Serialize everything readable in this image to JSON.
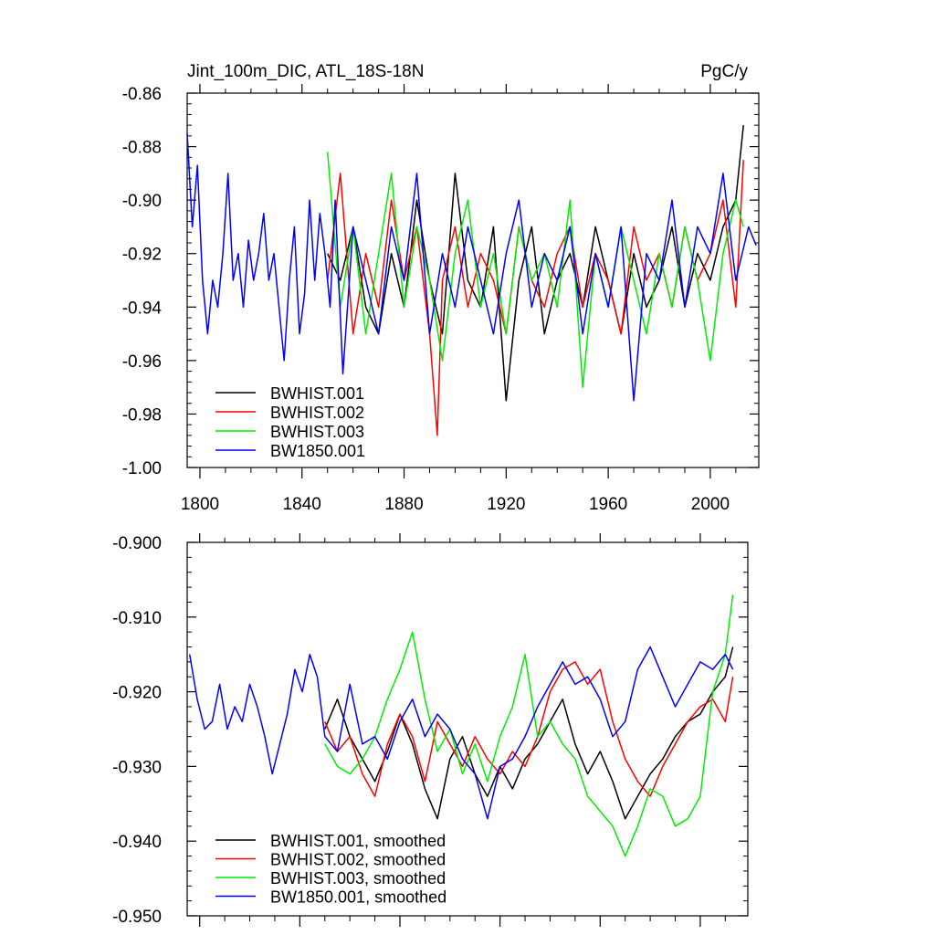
{
  "chart_data": [
    {
      "type": "line",
      "title": "Jint_100m_DIC, ATL_18S-18N",
      "units": "PgC/y",
      "xlim": [
        1795,
        2019
      ],
      "ylim": [
        -1.0,
        -0.86
      ],
      "x_ticks": [
        1800,
        1840,
        1880,
        1920,
        1960,
        2000
      ],
      "x_tick_labels": [
        "1800",
        "1840",
        "1880",
        "1920",
        "1960",
        "2000"
      ],
      "y_ticks": [
        -0.86,
        -0.88,
        -0.9,
        -0.92,
        -0.94,
        -0.96,
        -0.98,
        -1.0
      ],
      "y_tick_labels": [
        "-0.86",
        "-0.88",
        "-0.90",
        "-0.92",
        "-0.94",
        "-0.96",
        "-0.98",
        "-1.00"
      ],
      "legend_position": "bottom-left",
      "series": [
        {
          "name": "BWHIST.001",
          "color": "#000000",
          "x": [
            1850,
            1855,
            1860,
            1865,
            1870,
            1875,
            1880,
            1885,
            1890,
            1895,
            1900,
            1905,
            1910,
            1915,
            1920,
            1925,
            1930,
            1935,
            1940,
            1945,
            1950,
            1955,
            1960,
            1965,
            1970,
            1975,
            1980,
            1985,
            1990,
            1995,
            2000,
            2005,
            2010,
            2013
          ],
          "y": [
            -0.92,
            -0.93,
            -0.91,
            -0.94,
            -0.95,
            -0.92,
            -0.94,
            -0.9,
            -0.93,
            -0.95,
            -0.89,
            -0.93,
            -0.94,
            -0.91,
            -0.975,
            -0.93,
            -0.91,
            -0.95,
            -0.93,
            -0.92,
            -0.94,
            -0.91,
            -0.93,
            -0.95,
            -0.92,
            -0.94,
            -0.93,
            -0.91,
            -0.94,
            -0.92,
            -0.93,
            -0.91,
            -0.9,
            -0.872
          ]
        },
        {
          "name": "BWHIST.002",
          "color": "#ff0000",
          "x": [
            1850,
            1855,
            1860,
            1865,
            1870,
            1875,
            1880,
            1885,
            1890,
            1893,
            1895,
            1900,
            1905,
            1910,
            1915,
            1920,
            1925,
            1930,
            1935,
            1940,
            1945,
            1950,
            1955,
            1960,
            1965,
            1970,
            1975,
            1980,
            1985,
            1990,
            1995,
            2000,
            2005,
            2010,
            2013
          ],
          "y": [
            -0.93,
            -0.89,
            -0.95,
            -0.92,
            -0.94,
            -0.9,
            -0.93,
            -0.91,
            -0.95,
            -0.988,
            -0.93,
            -0.91,
            -0.94,
            -0.92,
            -0.93,
            -0.95,
            -0.91,
            -0.93,
            -0.94,
            -0.92,
            -0.91,
            -0.94,
            -0.92,
            -0.93,
            -0.95,
            -0.91,
            -0.93,
            -0.92,
            -0.94,
            -0.91,
            -0.93,
            -0.92,
            -0.9,
            -0.94,
            -0.885
          ]
        },
        {
          "name": "BWHIST.003",
          "color": "#00ee00",
          "x": [
            1850,
            1855,
            1860,
            1865,
            1870,
            1875,
            1880,
            1885,
            1890,
            1895,
            1900,
            1905,
            1910,
            1915,
            1920,
            1925,
            1930,
            1935,
            1940,
            1945,
            1950,
            1955,
            1960,
            1965,
            1970,
            1975,
            1980,
            1985,
            1990,
            1995,
            2000,
            2005,
            2010,
            2013
          ],
          "y": [
            -0.882,
            -0.94,
            -0.91,
            -0.95,
            -0.92,
            -0.89,
            -0.94,
            -0.91,
            -0.93,
            -0.96,
            -0.92,
            -0.9,
            -0.94,
            -0.92,
            -0.95,
            -0.91,
            -0.93,
            -0.92,
            -0.94,
            -0.9,
            -0.97,
            -0.92,
            -0.94,
            -0.91,
            -0.93,
            -0.95,
            -0.92,
            -0.94,
            -0.91,
            -0.93,
            -0.96,
            -0.92,
            -0.9,
            -0.91
          ]
        },
        {
          "name": "BW1850.001",
          "color": "#0000ff",
          "x": [
            1795,
            1797,
            1799,
            1801,
            1803,
            1805,
            1807,
            1809,
            1811,
            1813,
            1815,
            1817,
            1819,
            1821,
            1823,
            1825,
            1827,
            1829,
            1831,
            1833,
            1835,
            1837,
            1839,
            1841,
            1843,
            1845,
            1847,
            1849,
            1851,
            1853,
            1856,
            1860,
            1865,
            1870,
            1875,
            1880,
            1885,
            1890,
            1895,
            1900,
            1905,
            1910,
            1915,
            1920,
            1925,
            1930,
            1935,
            1940,
            1945,
            1950,
            1955,
            1960,
            1965,
            1970,
            1975,
            1980,
            1985,
            1990,
            1995,
            2000,
            2005,
            2010,
            2015,
            2018
          ],
          "y": [
            -0.875,
            -0.91,
            -0.887,
            -0.93,
            -0.95,
            -0.93,
            -0.94,
            -0.92,
            -0.89,
            -0.93,
            -0.92,
            -0.94,
            -0.915,
            -0.93,
            -0.92,
            -0.905,
            -0.93,
            -0.92,
            -0.94,
            -0.96,
            -0.93,
            -0.91,
            -0.95,
            -0.935,
            -0.9,
            -0.93,
            -0.905,
            -0.92,
            -0.94,
            -0.9,
            -0.965,
            -0.91,
            -0.93,
            -0.95,
            -0.91,
            -0.93,
            -0.89,
            -0.95,
            -0.92,
            -0.94,
            -0.91,
            -0.93,
            -0.95,
            -0.92,
            -0.9,
            -0.94,
            -0.92,
            -0.93,
            -0.91,
            -0.95,
            -0.92,
            -0.94,
            -0.91,
            -0.975,
            -0.92,
            -0.93,
            -0.9,
            -0.94,
            -0.91,
            -0.92,
            -0.89,
            -0.93,
            -0.91,
            -0.917
          ]
        }
      ]
    },
    {
      "type": "line",
      "title": "",
      "xlim": [
        1795,
        2019
      ],
      "ylim": [
        -0.95,
        -0.9
      ],
      "x_ticks": [
        1800,
        1840,
        1880,
        1920,
        1960,
        2000
      ],
      "y_ticks": [
        -0.9,
        -0.91,
        -0.92,
        -0.93,
        -0.94,
        -0.95
      ],
      "y_tick_labels": [
        "-0.900",
        "-0.910",
        "-0.920",
        "-0.930",
        "-0.940",
        "-0.950"
      ],
      "legend_position": "bottom-left",
      "series": [
        {
          "name": "BWHIST.001, smoothed",
          "color": "#000000",
          "x": [
            1850,
            1855,
            1860,
            1865,
            1870,
            1875,
            1880,
            1885,
            1890,
            1895,
            1900,
            1905,
            1910,
            1915,
            1920,
            1925,
            1930,
            1935,
            1940,
            1945,
            1950,
            1955,
            1960,
            1965,
            1970,
            1975,
            1980,
            1985,
            1990,
            1995,
            2000,
            2005,
            2010,
            2013
          ],
          "y": [
            -0.925,
            -0.921,
            -0.926,
            -0.929,
            -0.932,
            -0.928,
            -0.923,
            -0.927,
            -0.933,
            -0.937,
            -0.929,
            -0.926,
            -0.931,
            -0.934,
            -0.93,
            -0.933,
            -0.929,
            -0.927,
            -0.924,
            -0.921,
            -0.927,
            -0.931,
            -0.928,
            -0.932,
            -0.937,
            -0.934,
            -0.931,
            -0.929,
            -0.926,
            -0.924,
            -0.923,
            -0.92,
            -0.918,
            -0.914
          ]
        },
        {
          "name": "BWHIST.002, smoothed",
          "color": "#ff0000",
          "x": [
            1850,
            1855,
            1860,
            1865,
            1870,
            1875,
            1880,
            1885,
            1890,
            1895,
            1900,
            1905,
            1910,
            1915,
            1920,
            1925,
            1930,
            1935,
            1940,
            1945,
            1950,
            1955,
            1960,
            1965,
            1970,
            1975,
            1980,
            1985,
            1990,
            1995,
            2000,
            2005,
            2010,
            2013
          ],
          "y": [
            -0.924,
            -0.928,
            -0.926,
            -0.931,
            -0.934,
            -0.927,
            -0.923,
            -0.926,
            -0.932,
            -0.924,
            -0.927,
            -0.93,
            -0.926,
            -0.929,
            -0.931,
            -0.928,
            -0.93,
            -0.926,
            -0.92,
            -0.917,
            -0.916,
            -0.919,
            -0.917,
            -0.924,
            -0.929,
            -0.932,
            -0.934,
            -0.93,
            -0.927,
            -0.924,
            -0.922,
            -0.921,
            -0.924,
            -0.918
          ]
        },
        {
          "name": "BWHIST.003, smoothed",
          "color": "#00ee00",
          "x": [
            1850,
            1855,
            1860,
            1865,
            1870,
            1875,
            1880,
            1885,
            1890,
            1895,
            1900,
            1905,
            1910,
            1915,
            1920,
            1925,
            1930,
            1935,
            1940,
            1945,
            1950,
            1955,
            1960,
            1965,
            1970,
            1975,
            1980,
            1985,
            1990,
            1995,
            2000,
            2005,
            2010,
            2013
          ],
          "y": [
            -0.927,
            -0.93,
            -0.931,
            -0.929,
            -0.926,
            -0.921,
            -0.917,
            -0.912,
            -0.921,
            -0.928,
            -0.925,
            -0.931,
            -0.927,
            -0.932,
            -0.926,
            -0.922,
            -0.915,
            -0.926,
            -0.924,
            -0.927,
            -0.929,
            -0.934,
            -0.936,
            -0.938,
            -0.942,
            -0.938,
            -0.933,
            -0.934,
            -0.938,
            -0.937,
            -0.934,
            -0.92,
            -0.915,
            -0.907
          ]
        },
        {
          "name": "BW1850.001, smoothed",
          "color": "#0000ff",
          "x": [
            1796,
            1799,
            1802,
            1805,
            1808,
            1811,
            1814,
            1817,
            1820,
            1823,
            1826,
            1829,
            1832,
            1835,
            1838,
            1841,
            1844,
            1847,
            1850,
            1855,
            1860,
            1865,
            1870,
            1875,
            1880,
            1885,
            1890,
            1895,
            1900,
            1905,
            1910,
            1915,
            1920,
            1925,
            1930,
            1935,
            1940,
            1945,
            1950,
            1955,
            1960,
            1965,
            1970,
            1975,
            1980,
            1985,
            1990,
            1995,
            2000,
            2005,
            2010,
            2013
          ],
          "y": [
            -0.915,
            -0.921,
            -0.925,
            -0.924,
            -0.919,
            -0.925,
            -0.922,
            -0.924,
            -0.919,
            -0.922,
            -0.926,
            -0.931,
            -0.927,
            -0.923,
            -0.917,
            -0.92,
            -0.915,
            -0.918,
            -0.926,
            -0.928,
            -0.919,
            -0.927,
            -0.926,
            -0.929,
            -0.924,
            -0.921,
            -0.926,
            -0.923,
            -0.925,
            -0.929,
            -0.931,
            -0.937,
            -0.93,
            -0.929,
            -0.926,
            -0.922,
            -0.919,
            -0.916,
            -0.919,
            -0.918,
            -0.921,
            -0.926,
            -0.924,
            -0.917,
            -0.914,
            -0.918,
            -0.922,
            -0.919,
            -0.916,
            -0.917,
            -0.915,
            -0.917
          ]
        }
      ]
    }
  ]
}
